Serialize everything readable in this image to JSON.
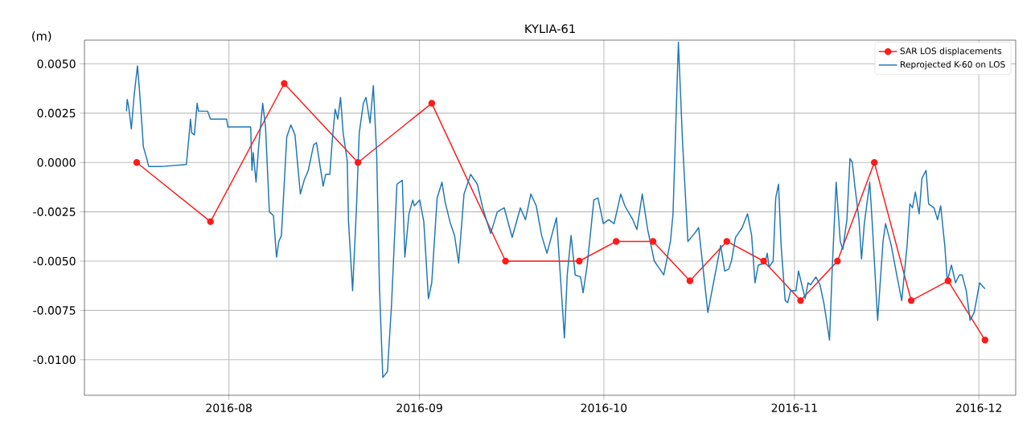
{
  "chart_data": {
    "type": "line",
    "title": "KYLIA-61",
    "ylabel": "(m)",
    "xlim": [
      "2016-07-08T12:00",
      "2016-12-07"
    ],
    "xticks": [
      {
        "value": "2016-08-01",
        "label": "2016-08"
      },
      {
        "value": "2016-09-01",
        "label": "2016-09"
      },
      {
        "value": "2016-10-01",
        "label": "2016-10"
      },
      {
        "value": "2016-11-01",
        "label": "2016-11"
      },
      {
        "value": "2016-12-01",
        "label": "2016-12"
      }
    ],
    "ylim": [
      -0.0118,
      0.0062
    ],
    "yticks": [
      {
        "value": -0.01,
        "label": "-0.0100"
      },
      {
        "value": -0.0075,
        "label": "-0.0075"
      },
      {
        "value": -0.005,
        "label": "-0.0050"
      },
      {
        "value": -0.0025,
        "label": "-0.0025"
      },
      {
        "value": 0,
        "label": "0.0000"
      },
      {
        "value": 0.0025,
        "label": "0.0025"
      },
      {
        "value": 0.005,
        "label": "0.0050"
      }
    ],
    "grid": true,
    "legend": "top right",
    "line_style": "solid",
    "series": [
      {
        "name": "SAR LOS displacements",
        "color": "#ff1a1a",
        "marker": "circle",
        "x": [
          "2016-07-17",
          "2016-07-29",
          "2016-08-10",
          "2016-08-22",
          "2016-09-03",
          "2016-09-15",
          "2016-09-27",
          "2016-10-03",
          "2016-10-09",
          "2016-10-15",
          "2016-10-21",
          "2016-10-27",
          "2016-11-02",
          "2016-11-08",
          "2016-11-14",
          "2016-11-20",
          "2016-11-26",
          "2016-12-02"
        ],
        "values": [
          0,
          -0.003,
          0.004,
          0,
          0.003,
          -0.005,
          -0.005,
          -0.004,
          -0.004,
          -0.006,
          -0.004,
          -0.005,
          -0.007,
          -0.005,
          0,
          -0.007,
          -0.006,
          -0.009
        ]
      },
      {
        "name": "Reprojected K-60 on LOS",
        "color": "#1f77b4",
        "marker": "none",
        "x": [
          "2016-07-15T08:00",
          "2016-07-15T11:00",
          "2016-07-15T17:00",
          "2016-07-16T03:00",
          "2016-07-16T14:00",
          "2016-07-17T03:00",
          "2016-07-17T10:00",
          "2016-07-17T21:00",
          "2016-07-18T02:00",
          "2016-07-18T13:00",
          "2016-07-18T23:00",
          "2016-07-21T04:00",
          "2016-07-25T02:00",
          "2016-07-25T12:00",
          "2016-07-25T18:00",
          "2016-07-25T23:00",
          "2016-07-26T09:00",
          "2016-07-26T20:00",
          "2016-07-27T01:00",
          "2016-07-28T13:00",
          "2016-07-29T00:00",
          "2016-07-31T15:00",
          "2016-07-31T20:00",
          "2016-08-04T13:00",
          "2016-08-04T18:00",
          "2016-08-04T23:00",
          "2016-08-05T10:00",
          "2016-08-05T20:00",
          "2016-08-06T12:00",
          "2016-08-06T23:00",
          "2016-08-07T14:00",
          "2016-08-08T06:00",
          "2016-08-08T18:00",
          "2016-08-09T03:00",
          "2016-08-09T13:00",
          "2016-08-10T10:00",
          "2016-08-11T02:00",
          "2016-08-11T18:00",
          "2016-08-12T15:00",
          "2016-08-13T06:00",
          "2016-08-13T22:00",
          "2016-08-14T19:00",
          "2016-08-15T06:00",
          "2016-08-16T08:00",
          "2016-08-16T18:00",
          "2016-08-17T10:00",
          "2016-08-17T20:00",
          "2016-08-18T07:00",
          "2016-08-18T17:00",
          "2016-08-19T04:00",
          "2016-08-19T14:00",
          "2016-08-20T06:00",
          "2016-08-20T11:00",
          "2016-08-21T03:00",
          "2016-08-21T18:00",
          "2016-08-22T05:00",
          "2016-08-22T21:00",
          "2016-08-23T07:00",
          "2016-08-23T23:00",
          "2016-08-24T12:00",
          "2016-08-25T01:00",
          "2016-08-25T12:00",
          "2016-08-26T01:00",
          "2016-08-26T19:00",
          "2016-08-27T11:00",
          "2016-08-28T08:00",
          "2016-08-29T05:00",
          "2016-08-29T15:00",
          "2016-08-30T07:00",
          "2016-08-30T22:00",
          "2016-08-31T04:00",
          "2016-09-01T01:00",
          "2016-09-01T17:00",
          "2016-09-02T11:00",
          "2016-09-03T00:00",
          "2016-09-03T21:00",
          "2016-09-04T16:00",
          "2016-09-05T04:00",
          "2016-09-06T01:00",
          "2016-09-06T17:00",
          "2016-09-07T09:00",
          "2016-09-08T06:00",
          "2016-09-09T08:00",
          "2016-09-10T10:00",
          "2016-09-11T07:00",
          "2016-09-12T14:00",
          "2016-09-13T16:00",
          "2016-09-14T19:00",
          "2016-09-16T02:00",
          "2016-09-17T10:00",
          "2016-09-18T06:00",
          "2016-09-19T03:00",
          "2016-09-20T00:00",
          "2016-09-20T21:00",
          "2016-09-21T18:00",
          "2016-09-23T07:00",
          "2016-09-23T23:00",
          "2016-09-24T14:00",
          "2016-09-25T01:00",
          "2016-09-25T16:00",
          "2016-09-26T08:00",
          "2016-09-27T05:00",
          "2016-09-27T15:00",
          "2016-09-28T07:00",
          "2016-09-29T09:00",
          "2016-09-30T01:00",
          "2016-09-30T22:00",
          "2016-10-01T19:00",
          "2016-10-02T16:00",
          "2016-10-03T18:00",
          "2016-10-04T10:00",
          "2016-10-05T17:00",
          "2016-10-06T09:00",
          "2016-10-07T06:00",
          "2016-10-08T03:00",
          "2016-10-09T05:00",
          "2016-10-10T18:00",
          "2016-10-11T20:00",
          "2016-10-12T06:00",
          "2016-10-13T03:00",
          "2016-10-13T19:00",
          "2016-10-14T16:00",
          "2016-10-15T18:00",
          "2016-10-16T10:00",
          "2016-10-17T12:00",
          "2016-10-17T22:00",
          "2016-10-20T00:00",
          "2016-10-20T16:00",
          "2016-10-21T08:00",
          "2016-10-21T18:00",
          "2016-10-22T10:00",
          "2016-10-23T12:00",
          "2016-10-24T09:00",
          "2016-10-25T01:00",
          "2016-10-25T14:00",
          "2016-10-26T03:00",
          "2016-10-27T05:00",
          "2016-10-27T14:00",
          "2016-10-27T21:00",
          "2016-10-28T13:00",
          "2016-10-28T23:00",
          "2016-10-29T10:00",
          "2016-10-29T20:00",
          "2016-10-30T12:00",
          "2016-10-30T22:00",
          "2016-10-31T09:00",
          "2016-11-01T06:00",
          "2016-11-01T16:00",
          "2016-11-02T03:00",
          "2016-11-02T18:00",
          "2016-11-03T05:00",
          "2016-11-03T15:00",
          "2016-11-04T12:00",
          "2016-11-05T04:00",
          "2016-11-05T20:00",
          "2016-11-06T17:00",
          "2016-11-07T03:00",
          "2016-11-07T19:00",
          "2016-11-08T11:00",
          "2016-11-08T21:00",
          "2016-11-09T13:00",
          "2016-11-10T01:00",
          "2016-11-10T10:00",
          "2016-11-10T20:00",
          "2016-11-11T12:00",
          "2016-11-11T22:00",
          "2016-11-12T09:00",
          "2016-11-13T06:00",
          "2016-11-13T16:00",
          "2016-11-14T13:00",
          "2016-11-15T10:00",
          "2016-11-15T20:00",
          "2016-11-16T18:00",
          "2016-11-17T14:00",
          "2016-11-18T11:00",
          "2016-11-19T08:00",
          "2016-11-19T19:00",
          "2016-11-20T05:00",
          "2016-11-20T16:00",
          "2016-11-21T07:00",
          "2016-11-21T18:00",
          "2016-11-22T10:00",
          "2016-11-22T20:00",
          "2016-11-23T17:00",
          "2016-11-24T07:00",
          "2016-11-24T19:00",
          "2016-11-25T11:00",
          "2016-11-25T21:00",
          "2016-11-26T13:00",
          "2016-11-27T05:00",
          "2016-11-27T20:00",
          "2016-11-28T07:00",
          "2016-11-28T23:00",
          "2016-11-29T14:00",
          "2016-11-30T06:00",
          "2016-12-01T03:00",
          "2016-12-02T00:00"
        ],
        "values": [
          0.0026,
          0.0032,
          0.0028,
          0.0017,
          0.0034,
          0.0049,
          0.0038,
          0.0018,
          0.0008,
          0.0003,
          -0.0002,
          -0.0002,
          -0.0001,
          0.0013,
          0.0022,
          0.0015,
          0.0014,
          0.003,
          0.0026,
          0.0026,
          0.0022,
          0.0022,
          0.0018,
          0.0018,
          -0.0004,
          0.0005,
          -0.001,
          0.0008,
          0.003,
          0.0018,
          -0.0025,
          -0.0027,
          -0.0048,
          -0.004,
          -0.0037,
          0.0013,
          0.0019,
          0.0014,
          -0.0016,
          -0.0009,
          -0.0004,
          0.0009,
          0.001,
          -0.0012,
          -0.0006,
          -0.0006,
          0.0012,
          0.0027,
          0.0022,
          0.0033,
          0.0015,
          0.0001,
          -0.003,
          -0.0065,
          -0.0023,
          0.0015,
          0.003,
          0.0033,
          0.002,
          0.0039,
          0.0004,
          -0.0064,
          -0.0109,
          -0.0106,
          -0.0072,
          -0.0011,
          -0.0009,
          -0.0048,
          -0.0026,
          -0.0019,
          -0.0022,
          -0.0019,
          -0.003,
          -0.0069,
          -0.0061,
          -0.0018,
          -0.001,
          -0.002,
          -0.0031,
          -0.0037,
          -0.0051,
          -0.0016,
          -0.0006,
          -0.0011,
          -0.0023,
          -0.0036,
          -0.0025,
          -0.0023,
          -0.0038,
          -0.0023,
          -0.0029,
          -0.0016,
          -0.0022,
          -0.0037,
          -0.0046,
          -0.0028,
          -0.0059,
          -0.0089,
          -0.0057,
          -0.0037,
          -0.0057,
          -0.0058,
          -0.0066,
          -0.0052,
          -0.0019,
          -0.0018,
          -0.0031,
          -0.0029,
          -0.0031,
          -0.0016,
          -0.0022,
          -0.0029,
          -0.0034,
          -0.0016,
          -0.0034,
          -0.005,
          -0.0057,
          -0.004,
          -0.0026,
          0.0061,
          0.0011,
          -0.004,
          -0.0036,
          -0.0033,
          -0.0064,
          -0.0076,
          -0.0042,
          -0.0055,
          -0.0054,
          -0.005,
          -0.0038,
          -0.0033,
          -0.0026,
          -0.0037,
          -0.0061,
          -0.0052,
          -0.0051,
          -0.0046,
          -0.0053,
          -0.005,
          -0.0018,
          -0.0011,
          -0.0042,
          -0.007,
          -0.0071,
          -0.0065,
          -0.0065,
          -0.0055,
          -0.0061,
          -0.0069,
          -0.0061,
          -0.0062,
          -0.0058,
          -0.0062,
          -0.0072,
          -0.009,
          -0.0056,
          -0.001,
          -0.004,
          -0.0044,
          -0.0029,
          0.0002,
          0.0,
          -0.0012,
          -0.0029,
          -0.0049,
          -0.0031,
          -0.001,
          -0.0031,
          -0.008,
          -0.004,
          -0.0031,
          -0.0042,
          -0.0056,
          -0.007,
          -0.0042,
          -0.0021,
          -0.0023,
          -0.0015,
          -0.0026,
          -0.0008,
          -0.0004,
          -0.0021,
          -0.0023,
          -0.0029,
          -0.0022,
          -0.0042,
          -0.006,
          -0.0052,
          -0.0061,
          -0.0057,
          -0.0057,
          -0.0065,
          -0.008,
          -0.0076,
          -0.0061,
          -0.0064
        ]
      }
    ]
  }
}
